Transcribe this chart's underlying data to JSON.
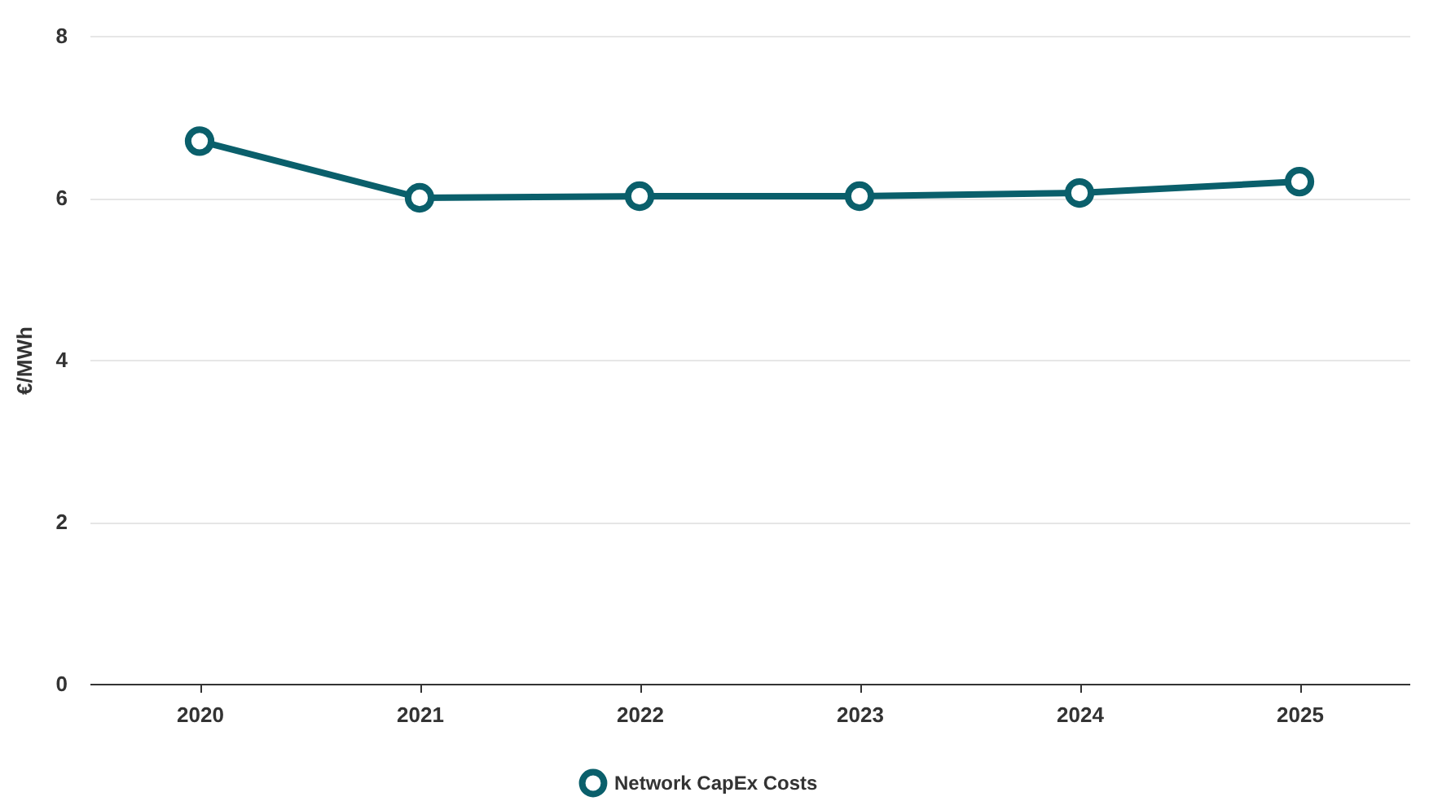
{
  "chart_data": {
    "type": "line",
    "ylabel": "€/MWh",
    "categories": [
      "2020",
      "2021",
      "2022",
      "2023",
      "2024",
      "2025"
    ],
    "series": [
      {
        "name": "Network CapEx Costs",
        "color": "#0a5f6b",
        "values": [
          6.7,
          6.0,
          6.02,
          6.02,
          6.06,
          6.2
        ]
      }
    ],
    "ylim": [
      0,
      8
    ],
    "yticks": [
      0,
      2,
      4,
      6,
      8
    ],
    "grid": "y",
    "legend": "bottom",
    "marker": "circle",
    "line_style": "solid"
  }
}
